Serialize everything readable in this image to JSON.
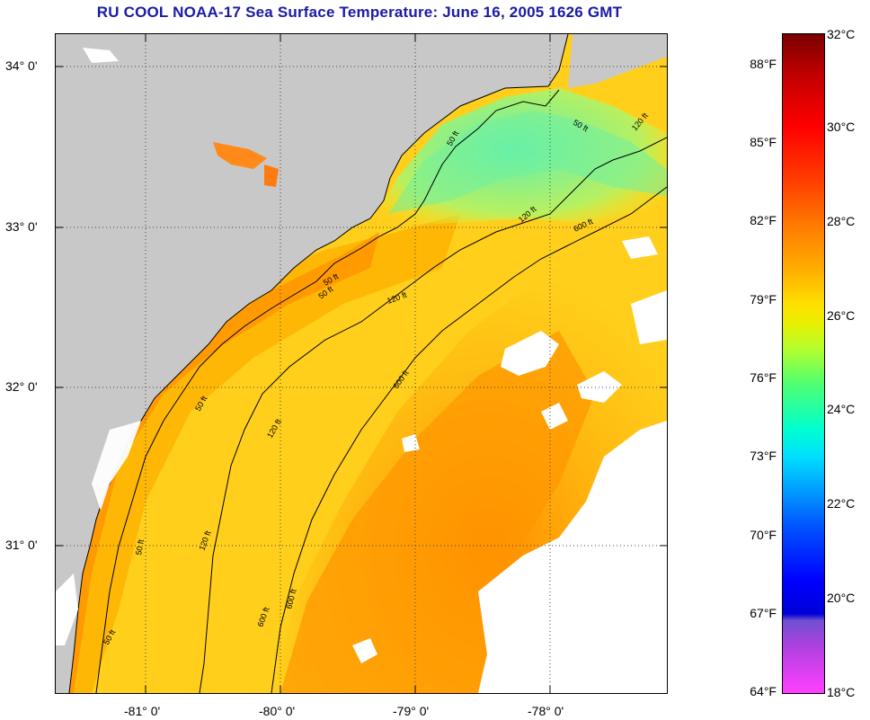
{
  "title": "RU COOL  NOAA-17  Sea Surface Temperature:  June 16, 2005 1626 GMT",
  "map": {
    "lat_labels": [
      "34° 0'",
      "33° 0'",
      "32° 0'",
      "31° 0'"
    ],
    "lon_labels": [
      "-81° 0'",
      "-80° 0'",
      "-79° 0'",
      "-78° 0'"
    ],
    "contour_labels": [
      "50 ft",
      "50 ft",
      "120 ft",
      "50 ft",
      "120 ft",
      "600 ft",
      "50 ft",
      "120 ft",
      "600 ft",
      "50 ft",
      "120 ft",
      "600 ft",
      "50 ft",
      "120 ft",
      "600 ft",
      "50 ft"
    ],
    "colors": {
      "land": "#c8c8c8",
      "cloud": "#ffffff",
      "warm": "#ff9a00",
      "cool": "#70f0a0"
    }
  },
  "colorbar": {
    "fahrenheit": [
      "88°F",
      "85°F",
      "82°F",
      "79°F",
      "76°F",
      "73°F",
      "70°F",
      "67°F",
      "64°F"
    ],
    "celsius": [
      "32°C",
      "30°C",
      "28°C",
      "26°C",
      "24°C",
      "22°C",
      "20°C",
      "18°C"
    ]
  }
}
